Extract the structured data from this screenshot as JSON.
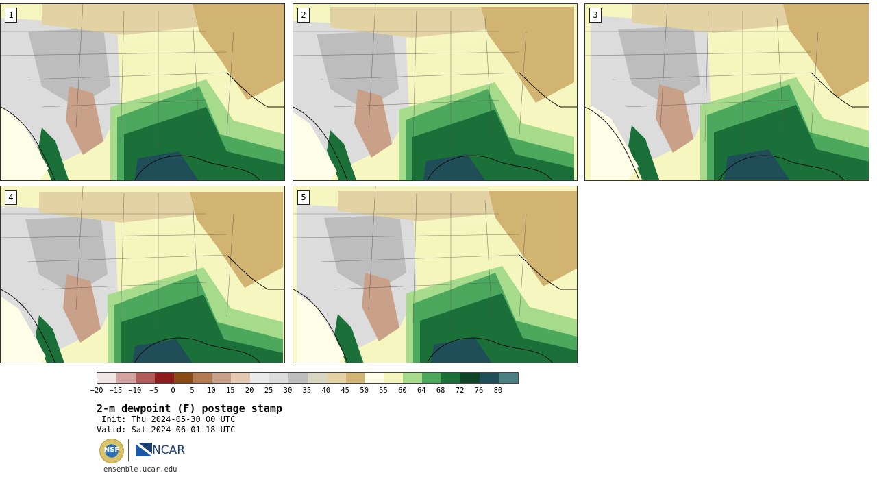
{
  "panels": [
    {
      "label": "1"
    },
    {
      "label": "2"
    },
    {
      "label": "3"
    },
    {
      "label": "4"
    },
    {
      "label": "5"
    }
  ],
  "colorbar": {
    "colors": [
      "#f2e6e6",
      "#d6a3a3",
      "#b05a5a",
      "#8e1c1c",
      "#8a4a14",
      "#b37a52",
      "#c9a088",
      "#e3c8b4",
      "#ececec",
      "#dcdcdc",
      "#bdbdbd",
      "#d9d6c4",
      "#e3d3a4",
      "#d1b471",
      "#fefee8",
      "#f4f6bd",
      "#a6db8c",
      "#4ca85c",
      "#1a7038",
      "#0f4426",
      "#1f4e58",
      "#4a7e80"
    ],
    "ticks": [
      "−20",
      "−15",
      "−10",
      "−5",
      "0",
      "5",
      "10",
      "15",
      "20",
      "25",
      "30",
      "35",
      "40",
      "45",
      "50",
      "55",
      "60",
      "64",
      "68",
      "72",
      "76",
      "80"
    ]
  },
  "title": "2-m dewpoint (F) postage stamp",
  "init": " Init: Thu 2024-05-30 00 UTC",
  "valid": "Valid: Sat 2024-06-01 18 UTC",
  "logos": {
    "nsf": "NSF",
    "ncar": "NCAR"
  },
  "site": "ensemble.ucar.edu"
}
